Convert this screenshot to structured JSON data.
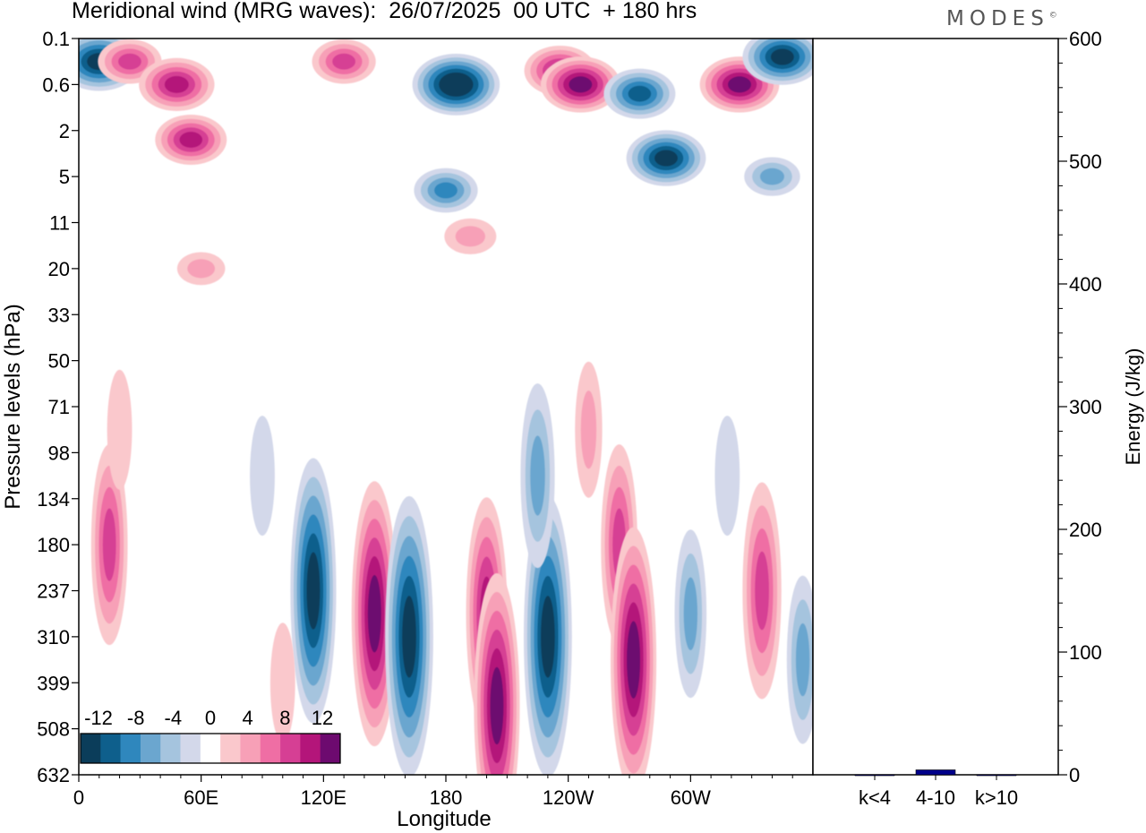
{
  "title": "Meridional wind (MRG waves):  26/07/2025  00 UTC  + 180 hrs",
  "logo_text": "MODES",
  "logo_mark": "©",
  "chart_data": [
    {
      "type": "heatmap",
      "title": "Meridional wind (MRG waves):  26/07/2025  00 UTC  + 180 hrs",
      "xlabel": "Longitude",
      "ylabel": "Pressure levels (hPa)",
      "x_ticks": [
        "0",
        "60E",
        "120E",
        "180",
        "120W",
        "60W"
      ],
      "x_tick_degrees": [
        0,
        60,
        120,
        180,
        240,
        300
      ],
      "x_range": [
        0,
        360
      ],
      "y_ticks": [
        "0.1",
        "0.6",
        "2",
        "5",
        "11",
        "20",
        "33",
        "50",
        "71",
        "98",
        "134",
        "180",
        "237",
        "310",
        "399",
        "508",
        "632"
      ],
      "colorbar": {
        "labels": [
          "-12",
          "-8",
          "-4",
          "0",
          "4",
          "8",
          "12"
        ],
        "levels": [
          -14,
          -12,
          -10,
          -8,
          -6,
          -4,
          -2,
          2,
          4,
          6,
          8,
          10,
          12,
          14
        ],
        "colors": [
          "#0b3d5a",
          "#0e5f8c",
          "#2f87bd",
          "#6ba6cf",
          "#a5c4de",
          "#d3d8ea",
          "#ffffff",
          "#fac8cc",
          "#f7a0b7",
          "#ef6ea4",
          "#d63f94",
          "#b4157a",
          "#6d0a6f"
        ]
      },
      "features": [
        {
          "lon": 10,
          "level_index": 0.5,
          "value": -13
        },
        {
          "lon": 25,
          "level_index": 0.5,
          "value": 8
        },
        {
          "lon": 48,
          "level_index": 1.0,
          "value": 11
        },
        {
          "lon": 55,
          "level_index": 2.2,
          "value": 10
        },
        {
          "lon": 60,
          "level_index": 5.0,
          "value": 4
        },
        {
          "lon": 130,
          "level_index": 0.5,
          "value": 8
        },
        {
          "lon": 185,
          "level_index": 1.0,
          "value": -14
        },
        {
          "lon": 180,
          "level_index": 3.3,
          "value": -8
        },
        {
          "lon": 192,
          "level_index": 4.3,
          "value": 5
        },
        {
          "lon": 236,
          "level_index": 0.7,
          "value": 10
        },
        {
          "lon": 246,
          "level_index": 1.0,
          "value": 12
        },
        {
          "lon": 275,
          "level_index": 1.2,
          "value": -10
        },
        {
          "lon": 288,
          "level_index": 2.6,
          "value": -12
        },
        {
          "lon": 324,
          "level_index": 1.0,
          "value": 12
        },
        {
          "lon": 345,
          "level_index": 0.4,
          "value": -12
        },
        {
          "lon": 340,
          "level_index": 3.0,
          "value": -6
        },
        {
          "lon": 15,
          "level_index": 11.0,
          "value": 8
        },
        {
          "lon": 20,
          "level_index": 8.5,
          "value": 3
        },
        {
          "lon": 90,
          "level_index": 9.5,
          "value": -3
        },
        {
          "lon": 115,
          "level_index": 12.0,
          "value": -12
        },
        {
          "lon": 100,
          "level_index": 14.0,
          "value": 3
        },
        {
          "lon": 145,
          "level_index": 12.5,
          "value": 12
        },
        {
          "lon": 162,
          "level_index": 13.0,
          "value": -13
        },
        {
          "lon": 200,
          "level_index": 12.5,
          "value": 10
        },
        {
          "lon": 205,
          "level_index": 14.5,
          "value": 12
        },
        {
          "lon": 230,
          "level_index": 13.0,
          "value": -13
        },
        {
          "lon": 225,
          "level_index": 9.5,
          "value": -7
        },
        {
          "lon": 250,
          "level_index": 8.5,
          "value": 4
        },
        {
          "lon": 265,
          "level_index": 11.0,
          "value": 8
        },
        {
          "lon": 272,
          "level_index": 13.5,
          "value": 12
        },
        {
          "lon": 300,
          "level_index": 12.5,
          "value": -6
        },
        {
          "lon": 335,
          "level_index": 12.0,
          "value": 9
        },
        {
          "lon": 355,
          "level_index": 13.5,
          "value": -6
        },
        {
          "lon": 318,
          "level_index": 9.5,
          "value": -3
        }
      ]
    },
    {
      "type": "bar",
      "ylabel": "Energy (J/kg)",
      "categories": [
        "k<4",
        "4-10",
        "k>10"
      ],
      "values": [
        0,
        4,
        0
      ],
      "y_ticks": [
        "0",
        "100",
        "200",
        "300",
        "400",
        "500",
        "600"
      ],
      "ylim": [
        0,
        600
      ],
      "bar_color": "#00008b"
    }
  ]
}
